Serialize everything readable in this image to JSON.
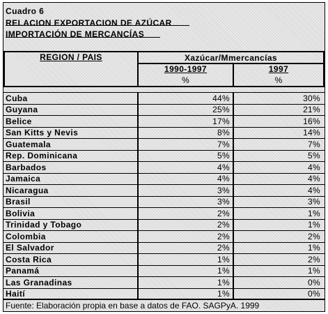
{
  "title": {
    "label": "Cuadro 6",
    "line1": "RELACION EXPORTACION DE AZÚCAR",
    "line2": "IMPORTACIÓN DE MERCANCÍAS"
  },
  "table": {
    "header": {
      "region": "REGION / PAIS",
      "group": "Xazúcar/Mmercancías",
      "periods": [
        "1990-1997",
        "1997"
      ],
      "units": [
        "%",
        "%"
      ]
    },
    "rows": [
      [
        "Cuba",
        "44%",
        "30%"
      ],
      [
        "Guyana",
        "25%",
        "21%"
      ],
      [
        "Belice",
        "17%",
        "16%"
      ],
      [
        "San Kitts y Nevis",
        "8%",
        "14%"
      ],
      [
        "Guatemala",
        "7%",
        "7%"
      ],
      [
        "Rep. Dominicana",
        "5%",
        "5%"
      ],
      [
        "Barbados",
        "4%",
        "4%"
      ],
      [
        "Jamaica",
        "4%",
        "4%"
      ],
      [
        "Nicaragua",
        "3%",
        "4%"
      ],
      [
        "Brasil",
        "3%",
        "3%"
      ],
      [
        "Bolivia",
        "2%",
        "1%"
      ],
      [
        "Trinidad y Tobago",
        "2%",
        "1%"
      ],
      [
        "Colombia",
        "2%",
        "2%"
      ],
      [
        "El Salvador",
        "2%",
        "1%"
      ],
      [
        "Costa Rica",
        "1%",
        "2%"
      ],
      [
        "Panamá",
        "1%",
        "1%"
      ],
      [
        "Las Granadinas",
        "1%",
        "0%"
      ],
      [
        "Haití",
        "1%",
        "0%"
      ]
    ]
  },
  "footer": "Fuente: Elaboración propia en base a datos de FAO. SAGPyA. 1999"
}
